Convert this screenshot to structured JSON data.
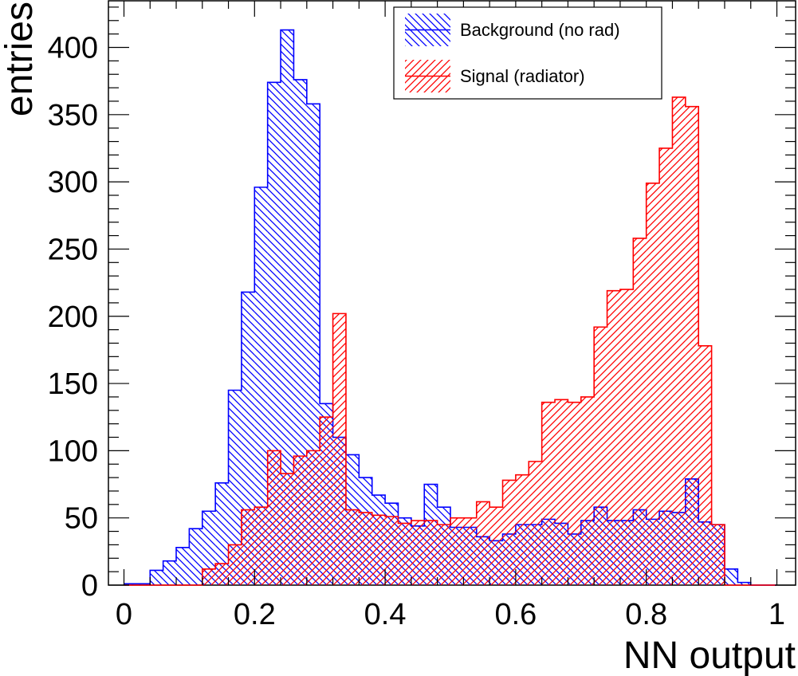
{
  "chart_data": {
    "type": "histogram",
    "xlabel": "NN output",
    "ylabel": "entries",
    "xlim": [
      0,
      1
    ],
    "ylim": [
      0,
      435
    ],
    "x_ticks": [
      "0",
      "0.2",
      "0.4",
      "0.6",
      "0.8",
      "1"
    ],
    "y_ticks": [
      "0",
      "50",
      "100",
      "150",
      "200",
      "250",
      "300",
      "350",
      "400"
    ],
    "bin_width": 0.02,
    "bin_start": 0.0,
    "legend_position": "top-right",
    "grid": false,
    "series": [
      {
        "name": "Background (no rad)",
        "color": "#0000ff",
        "hatch": "backslash",
        "values": [
          1,
          1,
          11,
          18,
          28,
          42,
          55,
          76,
          145,
          218,
          296,
          374,
          413,
          376,
          358,
          135,
          110,
          97,
          80,
          67,
          61,
          50,
          44,
          75,
          58,
          43,
          43,
          36,
          33,
          38,
          45,
          45,
          49,
          46,
          38,
          48,
          58,
          48,
          48,
          56,
          49,
          55,
          54,
          79,
          47,
          45,
          12,
          2,
          0,
          0
        ]
      },
      {
        "name": "Signal (radiator)",
        "color": "#ff0000",
        "hatch": "slash",
        "values": [
          0,
          0,
          0,
          0,
          0,
          0,
          12,
          16,
          30,
          56,
          58,
          100,
          83,
          96,
          100,
          125,
          202,
          56,
          54,
          52,
          51,
          46,
          48,
          48,
          45,
          50,
          50,
          62,
          58,
          78,
          82,
          92,
          136,
          138,
          136,
          140,
          192,
          219,
          220,
          258,
          299,
          325,
          363,
          356,
          178,
          45,
          0,
          0,
          0,
          0
        ]
      }
    ]
  }
}
